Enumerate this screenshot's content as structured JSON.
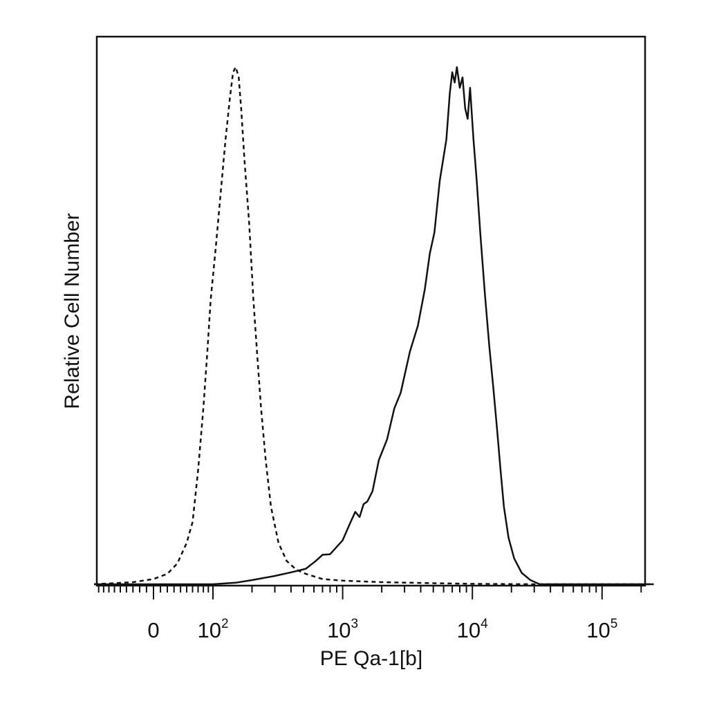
{
  "chart_data": {
    "type": "line",
    "title": "",
    "xlabel": "PE Qa-1[b]",
    "ylabel": "Relative Cell Number",
    "x_scale": "biexponential",
    "xlim": [
      -100,
      250000
    ],
    "ylim": [
      0,
      1
    ],
    "grid": false,
    "legend": "none",
    "x_tick_labels": [
      {
        "value": 0,
        "base": "0",
        "exp": ""
      },
      {
        "value": 100,
        "base": "10",
        "exp": "2"
      },
      {
        "value": 1000,
        "base": "10",
        "exp": "3"
      },
      {
        "value": 10000,
        "base": "10",
        "exp": "4"
      },
      {
        "value": 100000,
        "base": "10",
        "exp": "5"
      }
    ],
    "series": [
      {
        "style": "dashed",
        "color": "#111111",
        "points": [
          [
            -100,
            0.0
          ],
          [
            -30,
            0.004
          ],
          [
            0,
            0.01
          ],
          [
            20,
            0.02
          ],
          [
            35,
            0.04
          ],
          [
            50,
            0.08
          ],
          [
            60,
            0.12
          ],
          [
            70,
            0.22
          ],
          [
            80,
            0.34
          ],
          [
            88,
            0.45
          ],
          [
            95,
            0.55
          ],
          [
            105,
            0.65
          ],
          [
            115,
            0.76
          ],
          [
            125,
            0.86
          ],
          [
            135,
            0.94
          ],
          [
            143,
            0.99
          ],
          [
            150,
            1.0
          ],
          [
            158,
            0.98
          ],
          [
            165,
            0.92
          ],
          [
            175,
            0.82
          ],
          [
            190,
            0.7
          ],
          [
            205,
            0.55
          ],
          [
            220,
            0.44
          ],
          [
            235,
            0.34
          ],
          [
            255,
            0.24
          ],
          [
            280,
            0.15
          ],
          [
            320,
            0.08
          ],
          [
            370,
            0.045
          ],
          [
            440,
            0.028
          ],
          [
            520,
            0.02
          ],
          [
            700,
            0.01
          ],
          [
            1000,
            0.007
          ],
          [
            2000,
            0.004
          ],
          [
            5000,
            0.002
          ],
          [
            10000,
            0.0008
          ],
          [
            30000,
            0.0
          ],
          [
            250000,
            0.0
          ]
        ]
      },
      {
        "style": "solid",
        "color": "#111111",
        "points": [
          [
            -100,
            0.0
          ],
          [
            100,
            0.0
          ],
          [
            150,
            0.003
          ],
          [
            200,
            0.008
          ],
          [
            300,
            0.016
          ],
          [
            400,
            0.023
          ],
          [
            520,
            0.03
          ],
          [
            620,
            0.045
          ],
          [
            700,
            0.057
          ],
          [
            800,
            0.058
          ],
          [
            1000,
            0.085
          ],
          [
            1150,
            0.12
          ],
          [
            1250,
            0.14
          ],
          [
            1350,
            0.13
          ],
          [
            1450,
            0.155
          ],
          [
            1550,
            0.16
          ],
          [
            1700,
            0.18
          ],
          [
            1900,
            0.24
          ],
          [
            2200,
            0.28
          ],
          [
            2500,
            0.34
          ],
          [
            2800,
            0.37
          ],
          [
            3300,
            0.45
          ],
          [
            3800,
            0.5
          ],
          [
            4300,
            0.57
          ],
          [
            4700,
            0.64
          ],
          [
            5100,
            0.68
          ],
          [
            5600,
            0.78
          ],
          [
            6300,
            0.86
          ],
          [
            6700,
            0.95
          ],
          [
            7000,
            0.99
          ],
          [
            7300,
            0.97
          ],
          [
            7600,
            1.0
          ],
          [
            8000,
            0.96
          ],
          [
            8400,
            0.98
          ],
          [
            8800,
            0.92
          ],
          [
            9200,
            0.9
          ],
          [
            9600,
            0.96
          ],
          [
            10200,
            0.86
          ],
          [
            10800,
            0.78
          ],
          [
            11500,
            0.68
          ],
          [
            12500,
            0.56
          ],
          [
            13500,
            0.46
          ],
          [
            14500,
            0.38
          ],
          [
            15500,
            0.3
          ],
          [
            16500,
            0.22
          ],
          [
            17500,
            0.15
          ],
          [
            19000,
            0.09
          ],
          [
            21000,
            0.05
          ],
          [
            24000,
            0.022
          ],
          [
            28000,
            0.008
          ],
          [
            33000,
            0.0
          ],
          [
            250000,
            0.0
          ]
        ]
      }
    ]
  }
}
